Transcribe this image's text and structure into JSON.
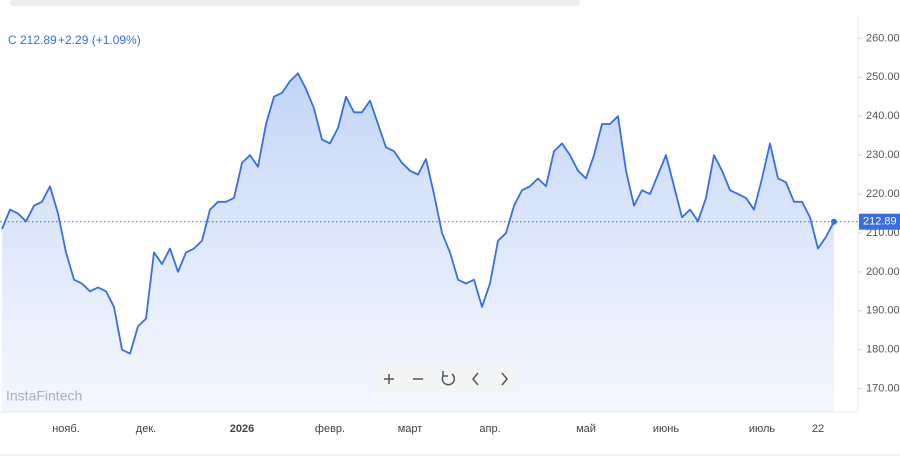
{
  "chart_data": {
    "type": "line",
    "header": {
      "symbol": "C",
      "price": "212.89",
      "change": "+2.29 (+1.09%)"
    },
    "watermark": "InstaFintech",
    "color": "#3a6ee0",
    "ylim": [
      164,
      266
    ],
    "yticks": [
      {
        "value": 170,
        "label": "170.00"
      },
      {
        "value": 180,
        "label": "180.00"
      },
      {
        "value": 190,
        "label": "190.00"
      },
      {
        "value": 200,
        "label": "200.00"
      },
      {
        "value": 210,
        "label": "210.00"
      },
      {
        "value": 220,
        "label": "220.00"
      },
      {
        "value": 230,
        "label": "230.00"
      },
      {
        "value": 240,
        "label": "240.00"
      },
      {
        "value": 250,
        "label": "250.00"
      },
      {
        "value": 260,
        "label": "260.00"
      }
    ],
    "categories": [
      null,
      null,
      null,
      null,
      null,
      null,
      null,
      null,
      "нояб.",
      null,
      null,
      null,
      null,
      null,
      null,
      null,
      null,
      null,
      "дек.",
      null,
      null,
      null,
      null,
      null,
      null,
      null,
      null,
      null,
      null,
      null,
      "2026",
      null,
      null,
      null,
      null,
      null,
      null,
      null,
      null,
      null,
      null,
      "февр.",
      null,
      null,
      null,
      null,
      null,
      null,
      null,
      null,
      null,
      "март",
      null,
      null,
      null,
      null,
      null,
      null,
      null,
      null,
      null,
      "апр.",
      null,
      null,
      null,
      null,
      null,
      null,
      null,
      null,
      null,
      null,
      null,
      "май",
      null,
      null,
      null,
      null,
      null,
      null,
      null,
      null,
      null,
      "июнь",
      null,
      null,
      null,
      null,
      null,
      null,
      null,
      null,
      null,
      null,
      null,
      "июль",
      null,
      null,
      null,
      null,
      null,
      null,
      "22",
      null,
      null
    ],
    "values": [
      211,
      216,
      215,
      213,
      217,
      218,
      222,
      215,
      205,
      198,
      197,
      195,
      196,
      195,
      191,
      180,
      179,
      186,
      188,
      205,
      202,
      206,
      200,
      205,
      206,
      208,
      216,
      218,
      218,
      219,
      228,
      230,
      227,
      238,
      245,
      246,
      249,
      251,
      247,
      242,
      234,
      233,
      237,
      245,
      241,
      241,
      244,
      238,
      232,
      231,
      228,
      226,
      225,
      229,
      220,
      210,
      205,
      198,
      197,
      198,
      191,
      197,
      208,
      210,
      217,
      221,
      222,
      224,
      222,
      231,
      233,
      230,
      226,
      224,
      230,
      238,
      238,
      240,
      226,
      217,
      221,
      220,
      225,
      230,
      222,
      214,
      216,
      213,
      219,
      230,
      226,
      221,
      220,
      219,
      216,
      224,
      233,
      224,
      223,
      218,
      218,
      214,
      206,
      209,
      212.89
    ]
  }
}
